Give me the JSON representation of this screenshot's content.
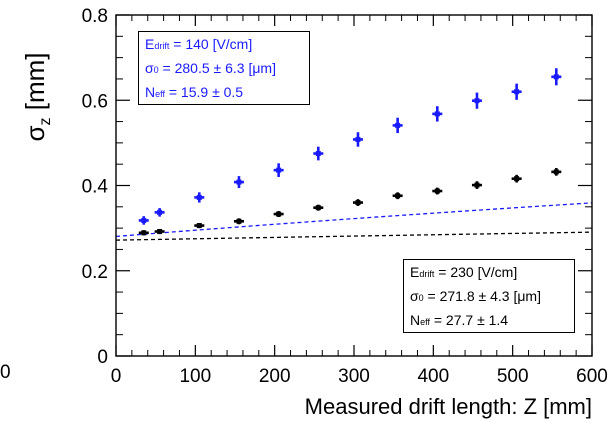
{
  "chart_data": {
    "type": "scatter",
    "xlabel": "Measured drift length: Z [mm]",
    "ylabel": {
      "symbol": "σ",
      "sub": "z",
      "unit": "[mm]"
    },
    "xlim": [
      0,
      600
    ],
    "ylim": [
      0,
      0.8
    ],
    "x_ticks": [
      "0",
      "100",
      "200",
      "300",
      "400",
      "500",
      "600"
    ],
    "y_ticks": [
      "0",
      "0.2",
      "0.4",
      "0.6",
      "0.8"
    ],
    "stray_label": "0",
    "grid": false,
    "series": [
      {
        "color": "#1a1aff",
        "fit_style": "dashed",
        "points": [
          {
            "x": 35,
            "y": 0.318,
            "err": 0.01
          },
          {
            "x": 55,
            "y": 0.337,
            "err": 0.01
          },
          {
            "x": 105,
            "y": 0.372,
            "err": 0.012
          },
          {
            "x": 155,
            "y": 0.408,
            "err": 0.014
          },
          {
            "x": 205,
            "y": 0.436,
            "err": 0.016
          },
          {
            "x": 255,
            "y": 0.475,
            "err": 0.016
          },
          {
            "x": 305,
            "y": 0.508,
            "err": 0.017
          },
          {
            "x": 355,
            "y": 0.541,
            "err": 0.018
          },
          {
            "x": 405,
            "y": 0.568,
            "err": 0.018
          },
          {
            "x": 455,
            "y": 0.599,
            "err": 0.019
          },
          {
            "x": 505,
            "y": 0.62,
            "err": 0.019
          },
          {
            "x": 555,
            "y": 0.655,
            "err": 0.02
          }
        ],
        "fit": {
          "sigma0_mm": 0.2805,
          "neff": 15.9,
          "d_t": 0.1156
        },
        "legend": {
          "e_label": "E",
          "e_sub": "drift",
          "e_value": "= 140 [V/cm]",
          "s_label": "σ",
          "s_sub": "0",
          "s_value": " = 280.5 ± 6.3 [μm]",
          "n_label": "N",
          "n_sub": "eff",
          "n_value": "= 15.9 ± 0.5"
        }
      },
      {
        "color": "#000000",
        "fit_style": "dashed",
        "points": [
          {
            "x": 35,
            "y": 0.289,
            "err": 0.006
          },
          {
            "x": 55,
            "y": 0.292,
            "err": 0.006
          },
          {
            "x": 105,
            "y": 0.306,
            "err": 0.006
          },
          {
            "x": 155,
            "y": 0.316,
            "err": 0.007
          },
          {
            "x": 205,
            "y": 0.333,
            "err": 0.007
          },
          {
            "x": 255,
            "y": 0.348,
            "err": 0.007
          },
          {
            "x": 305,
            "y": 0.36,
            "err": 0.008
          },
          {
            "x": 355,
            "y": 0.376,
            "err": 0.008
          },
          {
            "x": 405,
            "y": 0.387,
            "err": 0.008
          },
          {
            "x": 455,
            "y": 0.401,
            "err": 0.009
          },
          {
            "x": 505,
            "y": 0.416,
            "err": 0.009
          },
          {
            "x": 555,
            "y": 0.432,
            "err": 0.009
          }
        ],
        "fit": {
          "sigma0_mm": 0.2718,
          "neff": 27.7,
          "d_t": 0.0698
        },
        "legend": {
          "e_label": "E",
          "e_sub": "drift",
          "e_value": "= 230 [V/cm]",
          "s_label": "σ",
          "s_sub": "0",
          "s_value": " = 271.8 ± 4.3 [μm]",
          "n_label": "N",
          "n_sub": "eff",
          "n_value": "= 27.7 ± 1.4"
        }
      }
    ]
  }
}
